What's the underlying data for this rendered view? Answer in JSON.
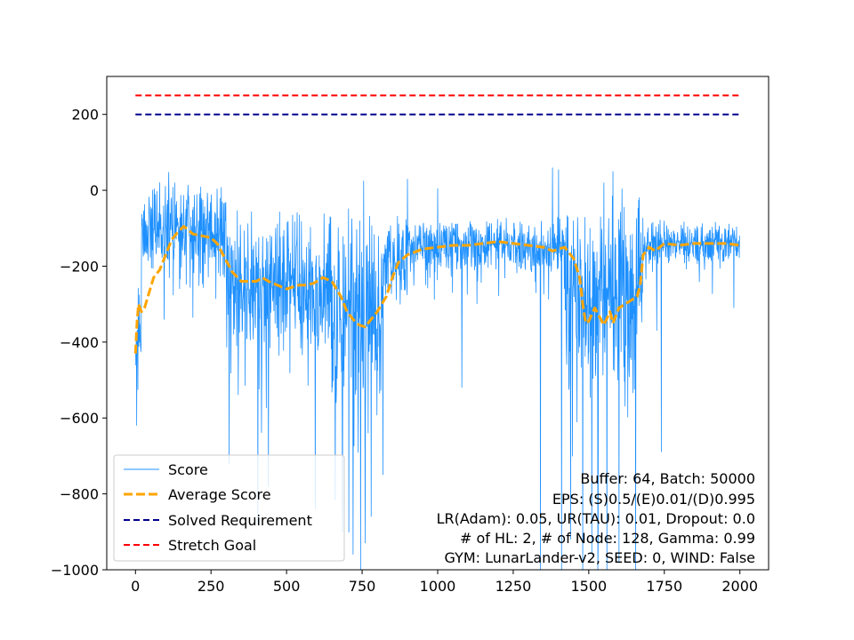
{
  "chart_data": {
    "type": "line",
    "xlim": [
      -95,
      2095
    ],
    "ylim": [
      -1000,
      300
    ],
    "x_ticks": [
      0,
      250,
      500,
      750,
      1000,
      1250,
      1500,
      1750,
      2000
    ],
    "y_ticks": [
      200,
      0,
      -200,
      -400,
      -600,
      -800,
      -1000
    ],
    "x_tick_labels": [
      "0",
      "250",
      "500",
      "750",
      "1000",
      "1250",
      "1500",
      "1750",
      "2000"
    ],
    "y_tick_labels": [
      "200",
      "0",
      "−200",
      "−400",
      "−600",
      "−800",
      "−1000"
    ],
    "legend_position": "lower-left",
    "series": [
      {
        "name": "Score",
        "style": "solid-thin",
        "color": "#1e90ff",
        "segments": [
          {
            "x": [
              0,
              20
            ],
            "base": -380,
            "amp": 120,
            "seed": 11
          },
          {
            "x": [
              20,
              180
            ],
            "base": -90,
            "amp": 85,
            "seed": 23
          },
          {
            "x": [
              180,
              300
            ],
            "base": -115,
            "amp": 110,
            "seed": 37
          },
          {
            "x": [
              300,
              650
            ],
            "base": -250,
            "amp": 150,
            "seed": 41
          },
          {
            "x": [
              650,
              820
            ],
            "base": -330,
            "amp": 220,
            "seed": 53
          },
          {
            "x": [
              820,
              900
            ],
            "base": -190,
            "amp": 100,
            "seed": 61
          },
          {
            "x": [
              900,
              1420
            ],
            "base": -145,
            "amp": 55,
            "seed": 71
          },
          {
            "x": [
              1420,
              1680
            ],
            "base": -260,
            "amp": 200,
            "seed": 83
          },
          {
            "x": [
              1680,
              2000
            ],
            "base": -140,
            "amp": 45,
            "seed": 97
          }
        ],
        "spikes": [
          {
            "x": 4,
            "y": -620
          },
          {
            "x": 310,
            "y": -720
          },
          {
            "x": 405,
            "y": -880
          },
          {
            "x": 440,
            "y": -780
          },
          {
            "x": 595,
            "y": -840
          },
          {
            "x": 685,
            "y": -900
          },
          {
            "x": 720,
            "y": -960
          },
          {
            "x": 745,
            "y": -1000
          },
          {
            "x": 760,
            "y": -930
          },
          {
            "x": 780,
            "y": -860
          },
          {
            "x": 1080,
            "y": -520
          },
          {
            "x": 1340,
            "y": -1000
          },
          {
            "x": 1410,
            "y": -1000
          },
          {
            "x": 1440,
            "y": -920
          },
          {
            "x": 1480,
            "y": -1000
          },
          {
            "x": 1510,
            "y": -960
          },
          {
            "x": 1530,
            "y": -1000
          },
          {
            "x": 1560,
            "y": -1000
          },
          {
            "x": 1600,
            "y": -980
          },
          {
            "x": 1655,
            "y": -1000
          },
          {
            "x": 1740,
            "y": -690
          },
          {
            "x": 1725,
            "y": -370
          },
          {
            "x": 1980,
            "y": -310
          },
          {
            "x": 1130,
            "y": -300
          }
        ],
        "peaks": [
          {
            "x": 110,
            "y": 48
          },
          {
            "x": 130,
            "y": 20
          },
          {
            "x": 755,
            "y": 25
          },
          {
            "x": 900,
            "y": 30
          },
          {
            "x": 1380,
            "y": 60
          },
          {
            "x": 1400,
            "y": 55
          },
          {
            "x": 1580,
            "y": 50
          },
          {
            "x": 1550,
            "y": 20
          },
          {
            "x": 1000,
            "y": 5
          }
        ]
      },
      {
        "name": "Average Score",
        "style": "dashed",
        "color": "#ffa500",
        "x": [
          0,
          5,
          10,
          20,
          30,
          45,
          60,
          80,
          100,
          120,
          140,
          160,
          190,
          220,
          250,
          270,
          290,
          320,
          350,
          380,
          400,
          420,
          440,
          470,
          500,
          520,
          540,
          560,
          590,
          620,
          650,
          680,
          700,
          720,
          740,
          760,
          780,
          800,
          830,
          850,
          870,
          900,
          950,
          1000,
          1050,
          1100,
          1150,
          1200,
          1250,
          1300,
          1350,
          1380,
          1420,
          1450,
          1470,
          1480,
          1490,
          1500,
          1520,
          1550,
          1570,
          1580,
          1600,
          1620,
          1640,
          1660,
          1670,
          1680,
          1700,
          1720,
          1750,
          1800,
          1850,
          1900,
          1950,
          2000
        ],
        "y": [
          -430,
          -350,
          -300,
          -320,
          -310,
          -270,
          -230,
          -210,
          -170,
          -130,
          -110,
          -95,
          -115,
          -120,
          -125,
          -140,
          -170,
          -215,
          -240,
          -240,
          -240,
          -230,
          -240,
          -250,
          -260,
          -255,
          -250,
          -250,
          -245,
          -230,
          -240,
          -280,
          -320,
          -340,
          -355,
          -360,
          -340,
          -320,
          -280,
          -230,
          -190,
          -170,
          -155,
          -150,
          -145,
          -145,
          -140,
          -135,
          -140,
          -145,
          -150,
          -160,
          -150,
          -180,
          -230,
          -300,
          -350,
          -345,
          -310,
          -355,
          -320,
          -350,
          -310,
          -300,
          -290,
          -280,
          -250,
          -170,
          -150,
          -160,
          -140,
          -145,
          -140,
          -140,
          -140,
          -145
        ]
      },
      {
        "name": "Solved Requirement",
        "style": "dashed",
        "color": "#00008b",
        "x": [
          0,
          2000
        ],
        "y": [
          200,
          200
        ]
      },
      {
        "name": "Stretch Goal",
        "style": "dashed",
        "color": "#ff0000",
        "x": [
          0,
          2000
        ],
        "y": [
          250,
          250
        ]
      }
    ],
    "annotations": [
      "Buffer: 64, Batch: 50000",
      "EPS: (S)0.5/(E)0.01/(D)0.995",
      "LR(Adam): 0.05, UR(TAU): 0.01, Dropout: 0.0",
      "# of HL: 2, # of Node: 128, Gamma: 0.99",
      "GYM: LunarLander-v2, SEED: 0, WIND: False"
    ]
  }
}
